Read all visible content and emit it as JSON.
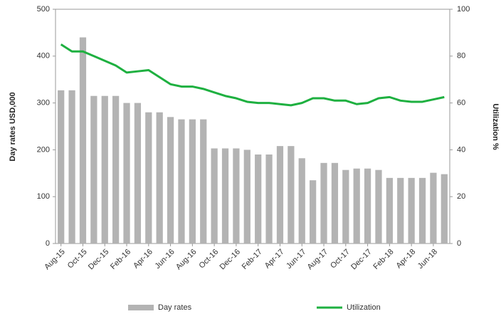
{
  "chart_data": {
    "type": "bar",
    "y_label": "Day rates USD,000",
    "y2_label": "Utilization %",
    "categories": [
      "Aug-15",
      null,
      "Oct-15",
      null,
      "Dec-15",
      null,
      "Feb-16",
      null,
      "Apr-16",
      null,
      "Jun-16",
      null,
      "Aug-16",
      null,
      "Oct-16",
      null,
      "Dec-16",
      null,
      "Feb-17",
      null,
      "Apr-17",
      null,
      "Jun-17",
      null,
      "Aug-17",
      null,
      "Oct-17",
      null,
      "Dec-17",
      null,
      "Feb-18",
      null,
      "Apr-18",
      null,
      "Jun-18",
      null
    ],
    "series": [
      {
        "name": "Day rates",
        "type": "bar",
        "color": "#b3b3b3",
        "values": [
          327,
          327,
          440,
          315,
          315,
          315,
          300,
          300,
          280,
          280,
          270,
          265,
          265,
          265,
          203,
          203,
          203,
          200,
          190,
          190,
          208,
          208,
          182,
          135,
          172,
          172,
          157,
          160,
          160,
          157,
          140,
          140,
          140,
          140,
          151,
          148
        ]
      },
      {
        "name": "Utilization",
        "type": "line",
        "axis": "y2",
        "color": "#1eb040",
        "values": [
          85,
          82,
          82,
          80,
          78,
          76,
          73,
          73.5,
          74,
          71,
          68,
          67,
          67,
          66,
          64.5,
          63,
          62,
          60.5,
          60,
          60,
          59.5,
          59,
          60,
          62,
          62,
          61,
          61,
          59.5,
          60,
          62,
          62.5,
          61,
          60.5,
          60.5,
          61.5,
          62.5
        ]
      }
    ],
    "ylim": [
      0,
      500
    ],
    "yticks": [
      0,
      100,
      200,
      300,
      400,
      500
    ],
    "y2lim": [
      0,
      100
    ],
    "y2ticks": [
      0,
      20,
      40,
      60,
      80,
      100
    ],
    "legend": "bottom"
  }
}
